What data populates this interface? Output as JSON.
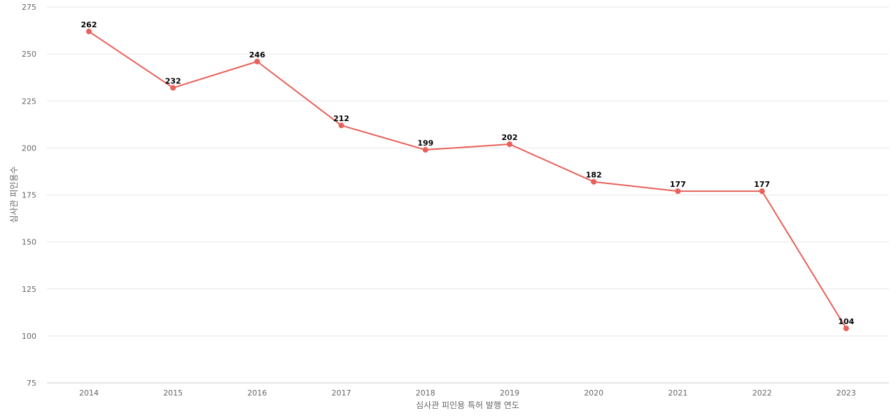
{
  "chart_data": {
    "type": "line",
    "title": "",
    "xlabel": "심사관 피인용 특허 발행 연도",
    "ylabel": "심사관 피인용수",
    "ylim": [
      75,
      275
    ],
    "yticks": [
      75,
      100,
      125,
      150,
      175,
      200,
      225,
      250,
      275
    ],
    "grid": true,
    "legend": "none",
    "categories": [
      "2014",
      "2015",
      "2016",
      "2017",
      "2018",
      "2019",
      "2020",
      "2021",
      "2022",
      "2023"
    ],
    "series": [
      {
        "values": [
          262,
          232,
          246,
          212,
          199,
          202,
          182,
          177,
          177,
          104
        ],
        "color": "#e8605a"
      }
    ]
  }
}
